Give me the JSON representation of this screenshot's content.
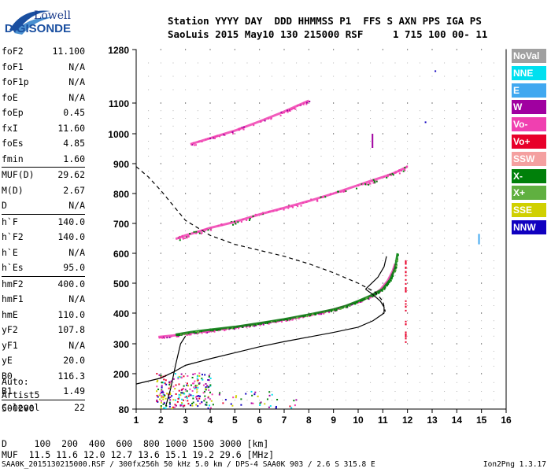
{
  "logo": {
    "line1": "Lowell",
    "line2": "DIGISONDE"
  },
  "header": {
    "line1": "Station YYYY DAY  DDD HHMMSS P1  FFS S AXN PPS IGA PS",
    "line2": "SaoLuis 2015 May10 130 215000 RSF     1 715 100 00- 11"
  },
  "params": {
    "g1": [
      [
        "foF2",
        "11.100"
      ],
      [
        "foF1",
        "N/A"
      ],
      [
        "foF1p",
        "N/A"
      ],
      [
        "foE",
        "N/A"
      ],
      [
        "foEp",
        "0.45"
      ],
      [
        "fxI",
        "11.60"
      ],
      [
        "foEs",
        "4.85"
      ],
      [
        "fmin",
        "1.60"
      ]
    ],
    "g2": [
      [
        "MUF(D)",
        "29.62"
      ],
      [
        "M(D)",
        "2.67"
      ],
      [
        "D",
        "N/A"
      ]
    ],
    "g3": [
      [
        "h`F",
        "140.0"
      ],
      [
        "h`F2",
        "140.0"
      ],
      [
        "h`E",
        "N/A"
      ],
      [
        "h`Es",
        "95.0"
      ]
    ],
    "g4": [
      [
        "hmF2",
        "400.0"
      ],
      [
        "hmF1",
        "N/A"
      ],
      [
        "hmE",
        "110.0"
      ],
      [
        "yF2",
        "107.8"
      ],
      [
        "yF1",
        "N/A"
      ],
      [
        "yE",
        "20.0"
      ],
      [
        "B0",
        "116.3"
      ],
      [
        "B1",
        "1.49"
      ]
    ],
    "g5": [
      [
        "C-level",
        "22"
      ]
    ]
  },
  "auto": {
    "line1": "Auto:",
    "line2": "Artist5",
    "line3": "500200"
  },
  "legend": [
    {
      "label": "NoVal",
      "color": "#a0a0a0"
    },
    {
      "label": "NNE",
      "color": "#00e0f0"
    },
    {
      "label": "E",
      "color": "#40a8f0"
    },
    {
      "label": "W",
      "color": "#a000a0"
    },
    {
      "label": "Vo-",
      "color": "#f040b0"
    },
    {
      "label": "Vo+",
      "color": "#e8002a"
    },
    {
      "label": "SSW",
      "color": "#f4a0a0"
    },
    {
      "label": "X-",
      "color": "#00800a"
    },
    {
      "label": "X+",
      "color": "#60b040"
    },
    {
      "label": "SSE",
      "color": "#d0d000"
    },
    {
      "label": "NNW",
      "color": "#1000c0"
    }
  ],
  "footer": {
    "d_line": "D     100  200  400  600  800 1000 1500 3000 [km]",
    "muf_line": "MUF  11.5 11.6 12.0 12.7 13.6 15.1 19.2 29.6 [MHz]",
    "file_line": "SAA0K_2015130215000.RSF / 300fx256h 50 kHz 5.0 km / DPS-4 SAA0K 903 / 2.6 S 315.8 E",
    "version": "Ion2Png 1.3.17"
  },
  "chart_data": {
    "type": "scatter",
    "xlim": [
      1,
      16
    ],
    "ylim": [
      80,
      1280
    ],
    "x_ticks": [
      "1",
      "2",
      "3",
      "4",
      "5",
      "6",
      "7",
      "8",
      "9",
      "10",
      "11",
      "12",
      "13",
      "14",
      "15",
      "16"
    ],
    "y_ticks": [
      "80",
      "200",
      "300",
      "400",
      "500",
      "600",
      "700",
      "800",
      "900",
      "1000",
      "1100",
      "1280"
    ],
    "y_tick_values": [
      80,
      200,
      300,
      400,
      500,
      600,
      700,
      800,
      900,
      1000,
      1100,
      1280
    ],
    "y_scale": "nonlinear",
    "grid": true,
    "traces": {
      "o_trace": {
        "color": "#f040b0",
        "points": [
          [
            1.9,
            322
          ],
          [
            2.5,
            327
          ],
          [
            3,
            333
          ],
          [
            3.5,
            338
          ],
          [
            4,
            343
          ],
          [
            4.5,
            348
          ],
          [
            5,
            354
          ],
          [
            5.5,
            360
          ],
          [
            6,
            366
          ],
          [
            6.5,
            372
          ],
          [
            7,
            379
          ],
          [
            7.5,
            386
          ],
          [
            8,
            394
          ],
          [
            8.5,
            402
          ],
          [
            9,
            412
          ],
          [
            9.5,
            424
          ],
          [
            10,
            438
          ],
          [
            10.5,
            456
          ],
          [
            10.9,
            478
          ],
          [
            11.2,
            508
          ],
          [
            11.4,
            540
          ],
          [
            11.5,
            565
          ]
        ]
      },
      "x_trace": {
        "color": "#00800a",
        "points": [
          [
            2.6,
            330
          ],
          [
            3.2,
            338
          ],
          [
            4,
            346
          ],
          [
            5,
            355
          ],
          [
            6,
            367
          ],
          [
            7,
            380
          ],
          [
            8,
            395
          ],
          [
            9,
            412
          ],
          [
            9.5,
            424
          ],
          [
            10,
            440
          ],
          [
            10.5,
            458
          ],
          [
            11,
            480
          ],
          [
            11.3,
            512
          ],
          [
            11.5,
            550
          ],
          [
            11.6,
            600
          ]
        ]
      },
      "second_hop": {
        "color": "#f040b0",
        "points": [
          [
            2.6,
            648
          ],
          [
            3,
            660
          ],
          [
            3.5,
            672
          ],
          [
            4,
            685
          ],
          [
            5,
            705
          ],
          [
            6,
            730
          ],
          [
            7,
            752
          ],
          [
            8,
            775
          ],
          [
            9,
            800
          ],
          [
            10,
            828
          ],
          [
            10.5,
            842
          ],
          [
            11,
            855
          ],
          [
            11.5,
            870
          ],
          [
            12,
            890
          ]
        ]
      },
      "third_hop": {
        "color": "#f040b0",
        "points": [
          [
            3.2,
            965
          ],
          [
            4,
            985
          ],
          [
            5,
            1010
          ],
          [
            6,
            1040
          ],
          [
            7,
            1072
          ],
          [
            7.5,
            1090
          ],
          [
            8,
            1108
          ]
        ]
      },
      "profile": {
        "color": "#000000",
        "style": "solid",
        "points": [
          [
            1,
            165
          ],
          [
            2,
            185
          ],
          [
            2.5,
            205
          ],
          [
            3,
            228
          ],
          [
            4,
            250
          ],
          [
            5,
            270
          ],
          [
            6,
            290
          ],
          [
            7,
            307
          ],
          [
            8,
            322
          ],
          [
            9,
            337
          ],
          [
            10,
            354
          ],
          [
            10.6,
            375
          ],
          [
            11.05,
            400
          ],
          [
            11.05,
            420
          ],
          [
            10.9,
            440
          ],
          [
            10.6,
            462
          ],
          [
            10.3,
            480
          ]
        ]
      },
      "extrap": {
        "color": "#000000",
        "style": "dashed",
        "points": [
          [
            1,
            890
          ],
          [
            1.5,
            855
          ],
          [
            2,
            810
          ],
          [
            2.5,
            760
          ],
          [
            3,
            710
          ],
          [
            4,
            660
          ],
          [
            5,
            630
          ],
          [
            6,
            610
          ],
          [
            7,
            590
          ],
          [
            8,
            565
          ],
          [
            9,
            535
          ],
          [
            10,
            500
          ],
          [
            10.7,
            470
          ],
          [
            11,
            440
          ],
          [
            11.1,
            405
          ]
        ]
      },
      "profile_lower": {
        "color": "#000000",
        "style": "solid",
        "points": [
          [
            2.2,
            90
          ],
          [
            2.4,
            150
          ],
          [
            2.6,
            230
          ],
          [
            2.8,
            300
          ],
          [
            3,
            325
          ]
        ]
      },
      "profile_upper": {
        "color": "#000000",
        "style": "solid",
        "points": [
          [
            10.3,
            480
          ],
          [
            10.8,
            520
          ],
          [
            11.05,
            555
          ],
          [
            11.15,
            590
          ]
        ]
      }
    }
  }
}
